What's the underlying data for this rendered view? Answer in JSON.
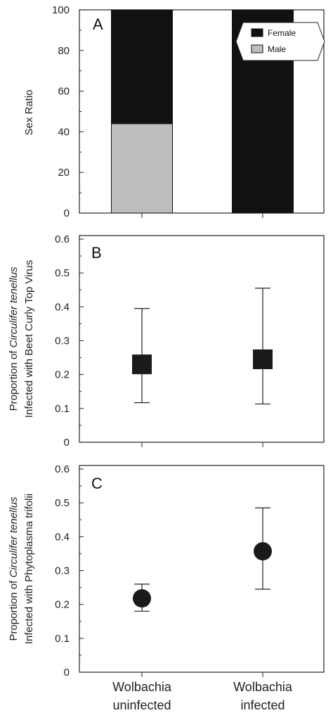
{
  "chart_data": [
    {
      "panel": "A",
      "type": "bar",
      "stacked": true,
      "ylabel": "Sex Ratio",
      "ylim": [
        0,
        100
      ],
      "yticks": [
        "0",
        "20",
        "40",
        "60",
        "80",
        "100"
      ],
      "categories": [
        "Wolbachia uninfected",
        "Wolbachia infected"
      ],
      "series": [
        {
          "name": "Male",
          "values": [
            44,
            0
          ],
          "color": "#bdbdbd"
        },
        {
          "name": "Female",
          "values": [
            56,
            100
          ],
          "color": "#111111"
        }
      ],
      "legend": {
        "position": "top-right",
        "items": [
          "Female",
          "Male"
        ]
      }
    },
    {
      "panel": "B",
      "type": "scatter",
      "marker": "square",
      "ylabel_line1_prefix": "Proportion of ",
      "ylabel_line1_italic": "Circulifer tenellus",
      "ylabel_line2": "Infected with Beet Curly Top Virus",
      "ylim": [
        0,
        0.6
      ],
      "yticks": [
        "0",
        "0.1",
        "0.2",
        "0.3",
        "0.4",
        "0.5",
        "0.6"
      ],
      "categories": [
        "Wolbachia uninfected",
        "Wolbachia infected"
      ],
      "values": [
        0.23,
        0.245
      ],
      "error_low": [
        0.117,
        0.113
      ],
      "error_high": [
        0.395,
        0.455
      ]
    },
    {
      "panel": "C",
      "type": "scatter",
      "marker": "circle",
      "ylabel_line1_prefix": "Proportion of ",
      "ylabel_line1_italic": "Circulifer tenellus",
      "ylabel_line2": "Infected with Phytoplasma trifolii",
      "ylim": [
        0,
        0.6
      ],
      "yticks": [
        "0",
        "0.1",
        "0.2",
        "0.3",
        "0.4",
        "0.5",
        "0.6"
      ],
      "categories": [
        "Wolbachia uninfected",
        "Wolbachia infected"
      ],
      "values": [
        0.218,
        0.357
      ],
      "error_low": [
        0.18,
        0.245
      ],
      "error_high": [
        0.26,
        0.485
      ]
    }
  ],
  "x_category_labels": [
    {
      "line1": "Wolbachia",
      "line2": "uninfected"
    },
    {
      "line1": "Wolbachia",
      "line2": "infected"
    }
  ],
  "colors": {
    "bar_black": "#111111",
    "bar_gray": "#bdbdbd",
    "marker": "#1a1a1a"
  }
}
